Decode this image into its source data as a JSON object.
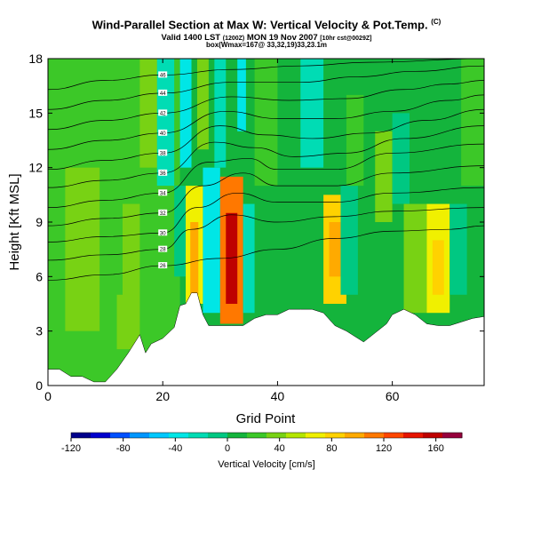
{
  "header": {
    "title": "Wind-Parallel Section at Max W: Vertical Velocity & Pot.Temp.",
    "title_mark": "(C)",
    "valid_prefix": "Valid 1400 LST",
    "valid_utc": "(1200Z)",
    "valid_date": "MON 19 Nov 2007",
    "valid_suffix": "[10hr cst@0029Z]",
    "line3": "box(Wmax=167@ 33,32,19)33,23.1m"
  },
  "chart_data": {
    "type": "heatmap",
    "xlabel": "Grid Point",
    "ylabel": "Height [Kft MSL]",
    "xlim": [
      0,
      76
    ],
    "ylim": [
      0,
      18
    ],
    "xticks": [
      "0",
      "20",
      "40",
      "60"
    ],
    "xtick_values": [
      0,
      20,
      40,
      60
    ],
    "yticks": [
      "0",
      "3",
      "6",
      "9",
      "12",
      "15",
      "18"
    ],
    "ytick_values": [
      0,
      3,
      6,
      9,
      12,
      15,
      18
    ],
    "colorbar": {
      "label": "Vertical Velocity [cm/s]",
      "range": [
        -120,
        180
      ],
      "tick_labels": [
        "-120",
        "-80",
        "-40",
        "0",
        "40",
        "80",
        "120",
        "160"
      ],
      "tick_values": [
        -120,
        -80,
        -40,
        0,
        40,
        80,
        120,
        160
      ],
      "colors": [
        "#00008b",
        "#0000cd",
        "#0050ff",
        "#0096ff",
        "#00c8ff",
        "#00e6e6",
        "#00dcb4",
        "#00c882",
        "#14b43c",
        "#3cc828",
        "#78d214",
        "#b4e600",
        "#f0f000",
        "#ffd200",
        "#ffaa00",
        "#ff7800",
        "#ff4600",
        "#e61400",
        "#be0000",
        "#96003c"
      ]
    },
    "max_w": {
      "value": 167,
      "x": 33,
      "height_kft": 7.5
    },
    "terrain": [
      [
        0,
        0.9
      ],
      [
        2,
        0.9
      ],
      [
        4,
        0.5
      ],
      [
        6,
        0.5
      ],
      [
        8,
        0.2
      ],
      [
        10,
        0.2
      ],
      [
        12,
        0.9
      ],
      [
        14,
        1.8
      ],
      [
        16,
        2.8
      ],
      [
        17,
        1.8
      ],
      [
        18,
        2.3
      ],
      [
        20,
        2.6
      ],
      [
        22,
        3.2
      ],
      [
        23,
        4.4
      ],
      [
        24,
        4.5
      ],
      [
        25,
        5.1
      ],
      [
        26,
        5.1
      ],
      [
        27,
        3.9
      ],
      [
        28,
        3.3
      ],
      [
        32,
        3.3
      ],
      [
        34,
        3.3
      ],
      [
        36,
        3.7
      ],
      [
        38,
        3.9
      ],
      [
        40,
        3.9
      ],
      [
        42,
        4.2
      ],
      [
        44,
        4.2
      ],
      [
        46,
        4.2
      ],
      [
        48,
        4.0
      ],
      [
        50,
        3.3
      ],
      [
        52,
        3.0
      ],
      [
        53,
        2.8
      ],
      [
        55,
        2.4
      ],
      [
        57,
        2.9
      ],
      [
        59,
        3.4
      ],
      [
        60,
        3.9
      ],
      [
        62,
        4.2
      ],
      [
        64,
        3.9
      ],
      [
        66,
        3.4
      ],
      [
        68,
        3.3
      ],
      [
        70,
        3.3
      ],
      [
        72,
        3.5
      ],
      [
        74,
        3.7
      ],
      [
        76,
        3.8
      ]
    ],
    "regions": [
      {
        "x0": 0,
        "x1": 76,
        "y0": 0,
        "y1": 18,
        "value": 10
      },
      {
        "x0": 0,
        "x1": 23,
        "y0": 0,
        "y1": 18,
        "value": 22
      },
      {
        "x0": 3,
        "x1": 9,
        "y0": 3,
        "y1": 12,
        "value": 32
      },
      {
        "x0": 12,
        "x1": 16,
        "y0": 2,
        "y1": 10,
        "value": 38
      },
      {
        "x0": 10,
        "x1": 13,
        "y0": 5,
        "y1": 17,
        "value": 28
      },
      {
        "x0": 16,
        "x1": 21,
        "y0": 12,
        "y1": 18,
        "value": 30
      },
      {
        "x0": 22,
        "x1": 24,
        "y0": 6,
        "y1": 11,
        "value": -15
      },
      {
        "x0": 24,
        "x1": 27,
        "y0": 4.5,
        "y1": 11,
        "value": 70
      },
      {
        "x0": 24.8,
        "x1": 26.2,
        "y0": 5,
        "y1": 9,
        "value": 95
      },
      {
        "x0": 27,
        "x1": 30,
        "y0": 4,
        "y1": 12,
        "value": -45
      },
      {
        "x0": 30,
        "x1": 34,
        "y0": 3.4,
        "y1": 11.5,
        "value": 110
      },
      {
        "x0": 31,
        "x1": 33,
        "y0": 4.5,
        "y1": 9.5,
        "value": 160
      },
      {
        "x0": 34,
        "x1": 36,
        "y0": 4,
        "y1": 10,
        "value": -20
      },
      {
        "x0": 19,
        "x1": 22,
        "y0": 11,
        "y1": 18,
        "value": -25
      },
      {
        "x0": 23,
        "x1": 25,
        "y0": 12,
        "y1": 18,
        "value": -35
      },
      {
        "x0": 26,
        "x1": 28,
        "y0": 13,
        "y1": 18,
        "value": 40
      },
      {
        "x0": 29,
        "x1": 31,
        "y0": 12,
        "y1": 18,
        "value": -30
      },
      {
        "x0": 33,
        "x1": 34.5,
        "y0": 14,
        "y1": 18,
        "value": -40
      },
      {
        "x0": 36,
        "x1": 40,
        "y0": 11,
        "y1": 18,
        "value": 25
      },
      {
        "x0": 44,
        "x1": 48,
        "y0": 12,
        "y1": 18,
        "value": -20
      },
      {
        "x0": 48,
        "x1": 52,
        "y0": 4.5,
        "y1": 10.5,
        "value": 75
      },
      {
        "x0": 49,
        "x1": 51,
        "y0": 6,
        "y1": 9,
        "value": 90
      },
      {
        "x0": 51,
        "x1": 54,
        "y0": 5,
        "y1": 11,
        "value": -10
      },
      {
        "x0": 52,
        "x1": 55,
        "y0": 11,
        "y1": 16,
        "value": 20
      },
      {
        "x0": 57,
        "x1": 60,
        "y0": 9,
        "y1": 14,
        "value": 35
      },
      {
        "x0": 60,
        "x1": 63,
        "y0": 10,
        "y1": 15,
        "value": -10
      },
      {
        "x0": 62,
        "x1": 66,
        "y0": 4,
        "y1": 10,
        "value": 35
      },
      {
        "x0": 66,
        "x1": 70,
        "y0": 4,
        "y1": 10,
        "value": 70
      },
      {
        "x0": 67,
        "x1": 69,
        "y0": 5,
        "y1": 8,
        "value": 85
      },
      {
        "x0": 70,
        "x1": 73,
        "y0": 5,
        "y1": 10,
        "value": -10
      },
      {
        "x0": 72,
        "x1": 76,
        "y0": 11,
        "y1": 18,
        "value": 25
      }
    ],
    "isentropes": [
      {
        "label": "26",
        "points": [
          [
            0,
            5.8
          ],
          [
            10,
            6.1
          ],
          [
            20,
            6.6
          ],
          [
            30,
            7.0
          ],
          [
            40,
            7.5
          ],
          [
            50,
            8.1
          ],
          [
            60,
            8.5
          ],
          [
            70,
            8.6
          ],
          [
            76,
            8.8
          ]
        ]
      },
      {
        "label": "28",
        "points": [
          [
            0,
            6.9
          ],
          [
            10,
            7.2
          ],
          [
            20,
            7.5
          ],
          [
            25,
            8.6
          ],
          [
            32,
            9.4
          ],
          [
            40,
            9.0
          ],
          [
            50,
            9.3
          ],
          [
            60,
            9.6
          ],
          [
            76,
            9.8
          ]
        ]
      },
      {
        "label": "30",
        "points": [
          [
            0,
            7.9
          ],
          [
            10,
            8.2
          ],
          [
            20,
            8.4
          ],
          [
            26,
            9.8
          ],
          [
            33,
            10.6
          ],
          [
            40,
            10.1
          ],
          [
            50,
            10.1
          ],
          [
            60,
            10.6
          ],
          [
            76,
            10.9
          ]
        ]
      },
      {
        "label": "32",
        "points": [
          [
            0,
            8.8
          ],
          [
            10,
            9.2
          ],
          [
            20,
            9.5
          ],
          [
            27,
            11.0
          ],
          [
            34,
            11.7
          ],
          [
            40,
            11.0
          ],
          [
            50,
            11.0
          ],
          [
            60,
            11.7
          ],
          [
            76,
            12.1
          ]
        ]
      },
      {
        "label": "34",
        "points": [
          [
            0,
            9.8
          ],
          [
            10,
            10.2
          ],
          [
            20,
            10.6
          ],
          [
            28,
            12.3
          ],
          [
            35,
            12.5
          ],
          [
            40,
            11.9
          ],
          [
            50,
            11.9
          ],
          [
            60,
            12.8
          ],
          [
            76,
            13.3
          ]
        ]
      },
      {
        "label": "36",
        "points": [
          [
            0,
            10.9
          ],
          [
            10,
            11.3
          ],
          [
            20,
            11.7
          ],
          [
            29,
            13.4
          ],
          [
            36,
            13.1
          ],
          [
            43,
            12.6
          ],
          [
            52,
            12.8
          ],
          [
            62,
            13.6
          ],
          [
            76,
            14.3
          ]
        ]
      },
      {
        "label": "38",
        "points": [
          [
            0,
            11.9
          ],
          [
            10,
            12.4
          ],
          [
            20,
            12.8
          ],
          [
            30,
            14.3
          ],
          [
            38,
            13.8
          ],
          [
            46,
            13.6
          ],
          [
            56,
            13.9
          ],
          [
            66,
            14.6
          ],
          [
            76,
            15.2
          ]
        ]
      },
      {
        "label": "40",
        "points": [
          [
            0,
            13.0
          ],
          [
            10,
            13.5
          ],
          [
            20,
            13.9
          ],
          [
            31,
            15.1
          ],
          [
            40,
            14.7
          ],
          [
            50,
            14.7
          ],
          [
            60,
            15.1
          ],
          [
            70,
            15.7
          ],
          [
            76,
            16.0
          ]
        ]
      },
      {
        "label": "42",
        "points": [
          [
            0,
            14.1
          ],
          [
            10,
            14.6
          ],
          [
            20,
            15.0
          ],
          [
            32,
            15.9
          ],
          [
            42,
            15.7
          ],
          [
            52,
            15.8
          ],
          [
            62,
            16.3
          ],
          [
            70,
            16.6
          ],
          [
            76,
            16.8
          ]
        ]
      },
      {
        "label": "44",
        "points": [
          [
            0,
            15.2
          ],
          [
            10,
            15.7
          ],
          [
            20,
            16.1
          ],
          [
            32,
            16.7
          ],
          [
            44,
            16.7
          ],
          [
            54,
            17.0
          ],
          [
            64,
            17.3
          ],
          [
            76,
            17.6
          ]
        ]
      },
      {
        "label": "46",
        "points": [
          [
            0,
            16.3
          ],
          [
            10,
            16.8
          ],
          [
            20,
            17.1
          ],
          [
            32,
            17.4
          ],
          [
            44,
            17.6
          ],
          [
            56,
            17.8
          ],
          [
            76,
            18.0
          ]
        ]
      }
    ]
  }
}
